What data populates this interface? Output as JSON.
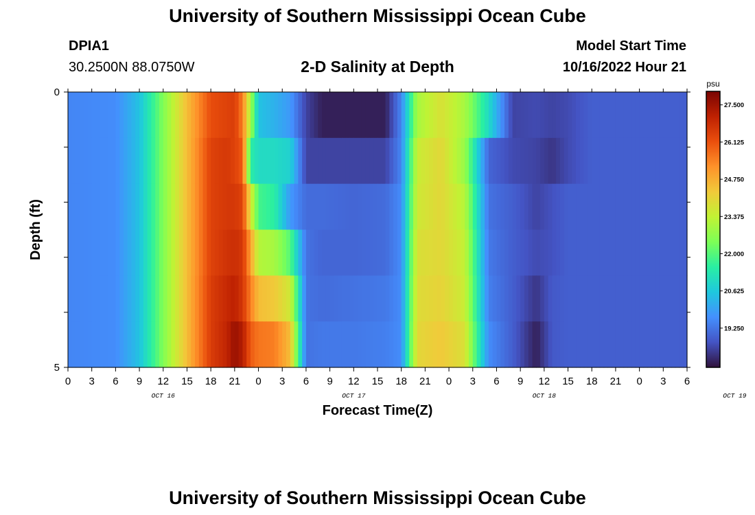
{
  "header": {
    "title": "University of Southern Mississippi Ocean Cube",
    "station": "DPIA1",
    "coords": "30.2500N  88.0750W",
    "subtitle": "2-D Salinity at Depth",
    "model_start_label": "Model Start Time",
    "model_start_value": "10/16/2022 Hour 21"
  },
  "footer": {
    "title": "University of Southern Mississippi Ocean Cube"
  },
  "chart_data": {
    "type": "heatmap",
    "title": "2-D Salinity at Depth",
    "xlabel": "Forecast Time(Z)",
    "ylabel": "Depth (ft)",
    "y_tick_labels": [
      "0",
      "5"
    ],
    "ylim": [
      0,
      5
    ],
    "x_tick_labels": [
      "0",
      "3",
      "6",
      "9",
      "12",
      "15",
      "18",
      "21",
      "0",
      "3",
      "6",
      "9",
      "12",
      "15",
      "18",
      "21",
      "0",
      "3",
      "6",
      "9",
      "12",
      "15",
      "18",
      "21",
      "0",
      "3",
      "6"
    ],
    "day_labels": [
      "OCT 16",
      "OCT 17",
      "OCT 18",
      "OCT 19"
    ],
    "x_hours_range": [
      0,
      78
    ],
    "colorbar": {
      "unit": "psu",
      "tick_labels": [
        "27.500",
        "26.125",
        "24.750",
        "23.375",
        "22.000",
        "20.625",
        "19.250"
      ],
      "range": [
        17.8,
        28.0
      ],
      "colors": [
        "#30123b",
        "#4454c4",
        "#4490fe",
        "#1fc8de",
        "#29efa2",
        "#7dff56",
        "#c1f334",
        "#f1ca3a",
        "#fe922a",
        "#ea4f0d",
        "#be2102",
        "#7a0403"
      ]
    },
    "grid": false,
    "row_keys_hours": [
      0,
      6,
      9,
      12,
      15,
      18,
      20,
      21,
      22,
      23,
      24,
      26,
      28,
      30,
      32,
      36,
      40,
      42,
      44,
      47,
      50,
      53,
      56,
      59,
      61,
      63,
      66,
      78
    ],
    "rows": [
      [
        19.5,
        19.6,
        20.5,
        22.5,
        24.5,
        26.2,
        26.4,
        26.5,
        25.5,
        23.0,
        20.5,
        20.2,
        19.8,
        18.5,
        18.0,
        18.0,
        18.0,
        19.5,
        23.0,
        23.8,
        23.0,
        21.0,
        18.5,
        18.6,
        18.5,
        18.6,
        18.9,
        18.9
      ],
      [
        19.5,
        19.6,
        20.5,
        22.5,
        24.5,
        26.4,
        26.6,
        26.4,
        26.0,
        21.5,
        21.0,
        21.0,
        20.8,
        18.5,
        18.5,
        18.5,
        18.5,
        19.5,
        23.5,
        24.0,
        22.8,
        19.0,
        18.6,
        18.5,
        18.3,
        18.6,
        18.9,
        18.9
      ],
      [
        19.5,
        19.6,
        20.5,
        22.5,
        24.5,
        26.4,
        26.6,
        26.6,
        26.4,
        23.8,
        21.8,
        21.5,
        19.8,
        19.1,
        19.1,
        19.0,
        19.1,
        19.6,
        23.6,
        24.0,
        23.2,
        19.2,
        18.9,
        18.5,
        18.7,
        18.9,
        18.9,
        18.9
      ],
      [
        19.5,
        19.6,
        20.5,
        22.5,
        24.5,
        26.4,
        26.7,
        26.8,
        26.6,
        25.0,
        23.2,
        23.0,
        22.0,
        19.2,
        19.0,
        19.0,
        19.1,
        19.6,
        23.8,
        24.0,
        23.4,
        19.3,
        18.9,
        18.6,
        18.7,
        18.9,
        18.9,
        18.9
      ],
      [
        19.5,
        19.6,
        20.5,
        22.5,
        24.5,
        26.5,
        26.9,
        27.1,
        26.6,
        25.5,
        24.5,
        24.3,
        23.6,
        19.2,
        19.1,
        19.2,
        19.3,
        19.6,
        23.9,
        24.1,
        23.5,
        19.4,
        18.9,
        18.3,
        18.8,
        18.9,
        18.9,
        18.9
      ],
      [
        19.5,
        19.6,
        20.5,
        22.5,
        24.5,
        26.5,
        27.0,
        27.6,
        27.2,
        26.0,
        25.6,
        25.5,
        24.5,
        19.2,
        19.3,
        19.3,
        19.4,
        19.6,
        24.0,
        24.3,
        23.8,
        19.6,
        18.9,
        18.0,
        18.8,
        18.9,
        18.9,
        18.9
      ]
    ]
  }
}
